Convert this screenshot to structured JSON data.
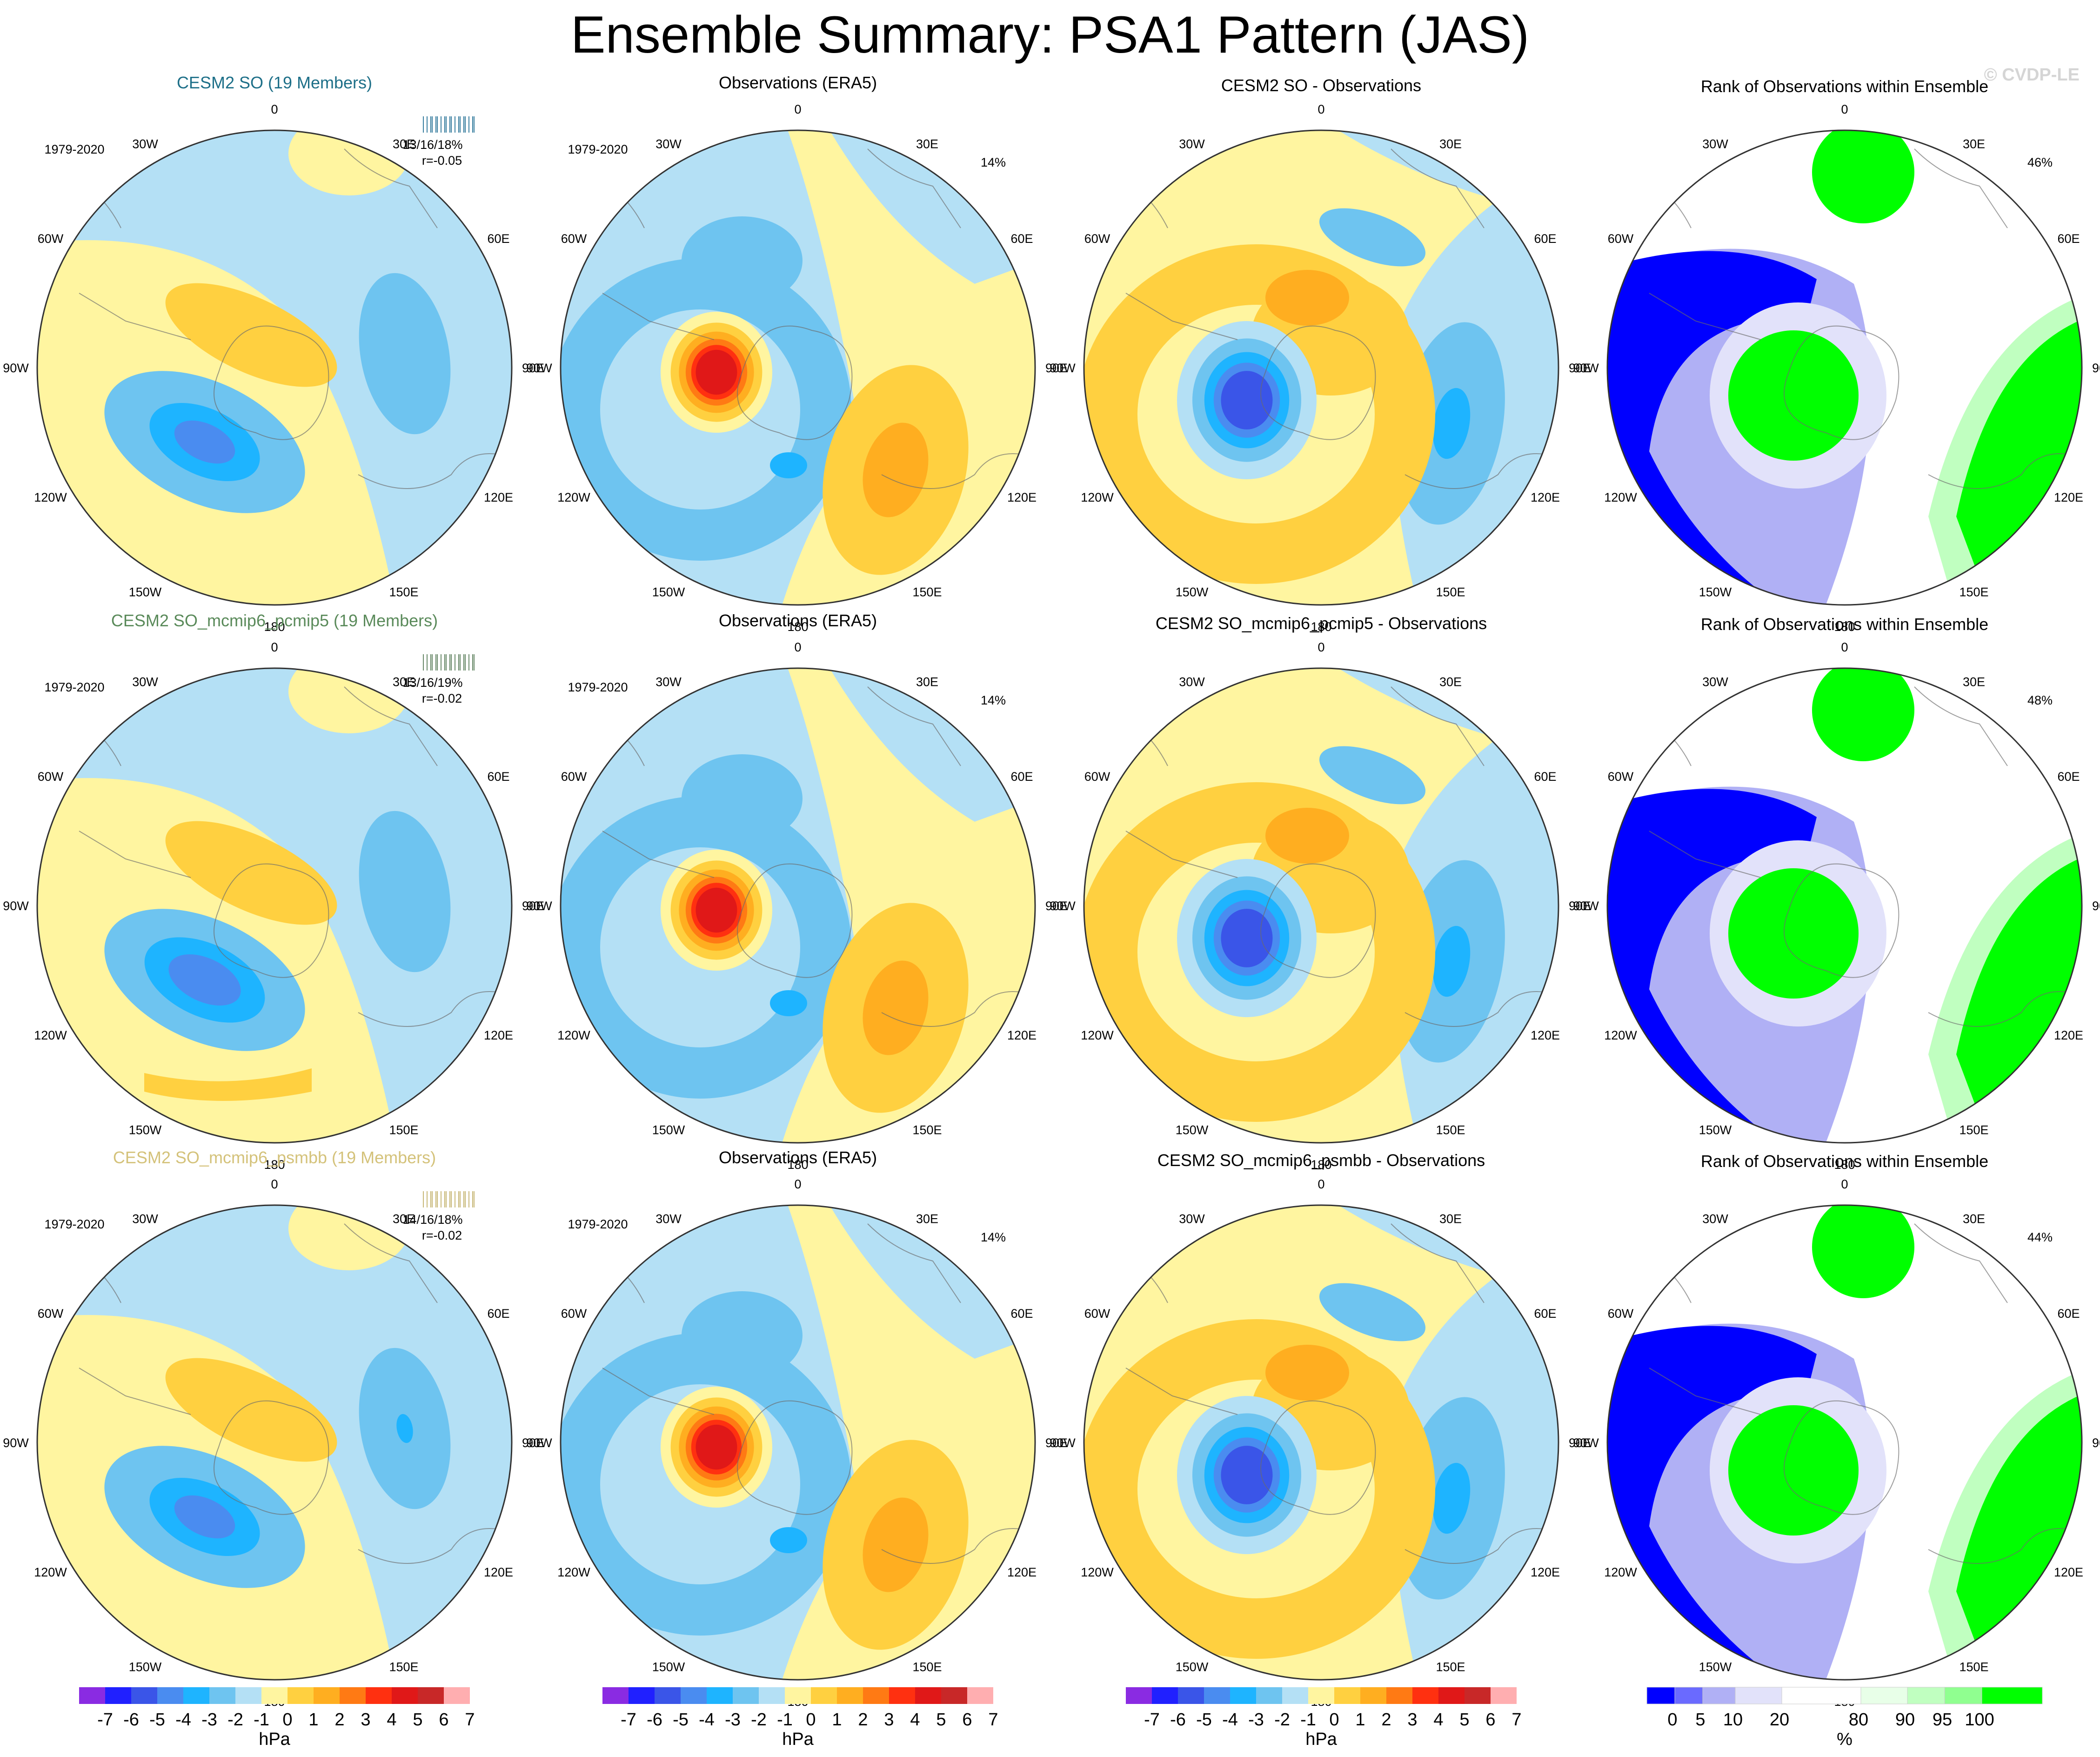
{
  "title": "Ensemble Summary: PSA1 Pattern (JAS)",
  "watermark": "© CVDP-LE",
  "period": "1979-2020",
  "lon_labels": [
    "0",
    "30E",
    "60E",
    "90E",
    "120E",
    "150E",
    "180",
    "150W",
    "120W",
    "90W",
    "60W",
    "30W"
  ],
  "colors": {
    "hpa_scale": [
      "#8a2be2",
      "#2020ff",
      "#3a55e8",
      "#4a8cf0",
      "#1eb4ff",
      "#6ec4f0",
      "#b4e0f5",
      "#fff5a0",
      "#ffd040",
      "#ffae20",
      "#ff7a14",
      "#ff3010",
      "#e01818",
      "#c82828",
      "#ffaeb0"
    ],
    "rank_scale": [
      "#0000ff",
      "#6a6aff",
      "#b0b0f5",
      "#e2e2fa",
      "#ffffff",
      "#e8ffe8",
      "#c0ffc0",
      "#90ff90",
      "#00ff00"
    ],
    "row_title_colors": [
      "#1d6f88",
      "#5a8a5a",
      "#d4c27a"
    ]
  },
  "rows": [
    {
      "model_title": "CESM2 SO (19 Members)",
      "stats": "13/16/18%",
      "r": "r=-0.05",
      "obs_title": "Observations (ERA5)",
      "obs_pct": "14%",
      "diff_title": "CESM2 SO - Observations",
      "rank_title": "Rank of Observations within Ensemble",
      "rank_pct": "46%"
    },
    {
      "model_title": "CESM2 SO_mcmip6_pcmip5 (19 Members)",
      "stats": "13/16/19%",
      "r": "r=-0.02",
      "obs_title": "Observations (ERA5)",
      "obs_pct": "14%",
      "diff_title": "CESM2 SO_mcmip6_pcmip5 - Observations",
      "rank_title": "Rank of Observations within Ensemble",
      "rank_pct": "48%"
    },
    {
      "model_title": "CESM2 SO_mcmip6_psmbb (19 Members)",
      "stats": "14/16/18%",
      "r": "r=-0.02",
      "obs_title": "Observations (ERA5)",
      "obs_pct": "14%",
      "diff_title": "CESM2 SO_mcmip6_psmbb - Observations",
      "rank_title": "Rank of Observations within Ensemble",
      "rank_pct": "44%"
    }
  ],
  "colorbar_hpa": {
    "ticks": [
      "-7",
      "-6",
      "-5",
      "-4",
      "-3",
      "-2",
      "-1",
      "0",
      "1",
      "2",
      "3",
      "4",
      "5",
      "6",
      "7"
    ],
    "unit": "hPa"
  },
  "colorbar_rank": {
    "ticks": [
      "0",
      "5",
      "10",
      "20",
      "80",
      "90",
      "95",
      "100"
    ],
    "unit": "%"
  },
  "chart_data": {
    "type": "heatmap",
    "title": "Ensemble Summary: PSA1 Pattern (JAS)",
    "projection": "south polar stereographic",
    "units": "hPa",
    "contour_levels": [
      -7,
      -6,
      -5,
      -4,
      -3,
      -2,
      -1,
      0,
      1,
      2,
      3,
      4,
      5,
      6,
      7
    ],
    "rank_levels_percent": [
      0,
      5,
      10,
      20,
      80,
      90,
      95,
      100
    ],
    "panels": [
      "ensemble mean",
      "observations (ERA5)",
      "ensemble mean - observations",
      "rank of observations within ensemble"
    ],
    "rank_percentages": [
      46,
      48,
      44
    ],
    "observation_percent_variance": 14
  }
}
